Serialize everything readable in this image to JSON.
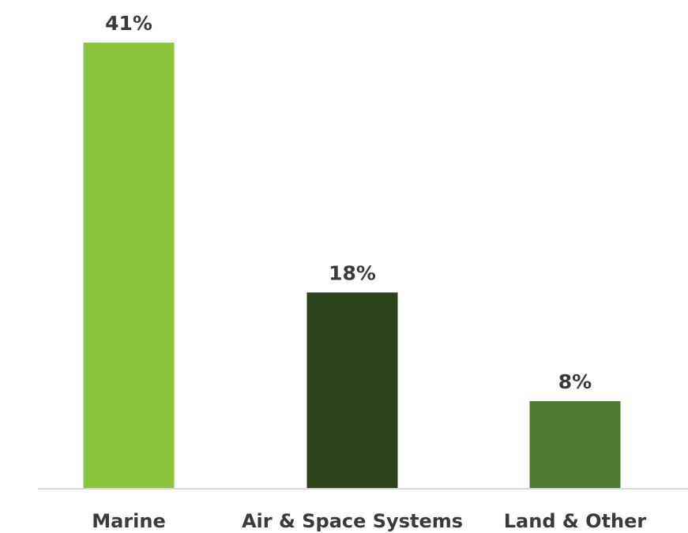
{
  "chart_data": {
    "type": "bar",
    "categories": [
      "Marine",
      "Air & Space Systems",
      "Land & Other"
    ],
    "values": [
      41,
      18,
      8
    ],
    "data_labels": [
      "41%",
      "18%",
      "8%"
    ],
    "colors": [
      "#8cc63f",
      "#2d431c",
      "#4e7a31"
    ],
    "ylim": [
      0,
      41
    ],
    "grid": false,
    "legend": "none",
    "axis_line_color": "#cccccc"
  }
}
